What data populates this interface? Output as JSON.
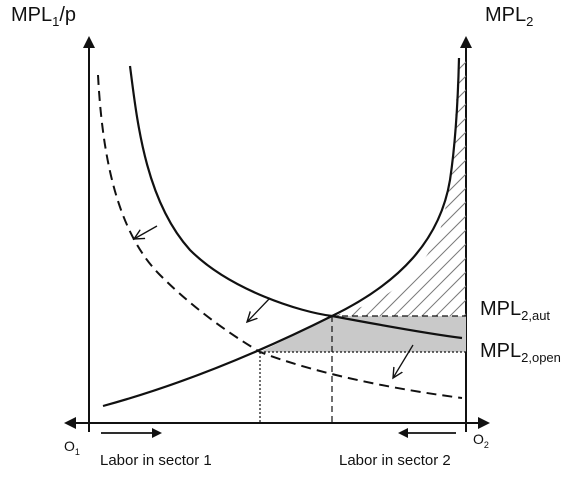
{
  "labels": {
    "left_axis_main": "MPL",
    "left_axis_sub": "1",
    "left_axis_suffix": "/p",
    "right_axis_main": "MPL",
    "right_axis_sub": "2",
    "mpl_aut_main": "MPL",
    "mpl_aut_sub": "2,aut",
    "mpl_open_main": "MPL",
    "mpl_open_sub": "2,open",
    "origin_left_main": "O",
    "origin_left_sub": "1",
    "origin_right_main": "O",
    "origin_right_sub": "2",
    "labor_sector_1": "Labor in sector 1",
    "labor_sector_2": "Labor in sector 2"
  },
  "colors": {
    "line": "#111111",
    "shaded_region": "#c9c9c9",
    "hatch": "#7a7a7a"
  },
  "icons": {
    "arrow_right": "arrow-right-icon",
    "arrow_left": "arrow-left-icon",
    "shift_arrow": "shift-arrow-icon"
  }
}
